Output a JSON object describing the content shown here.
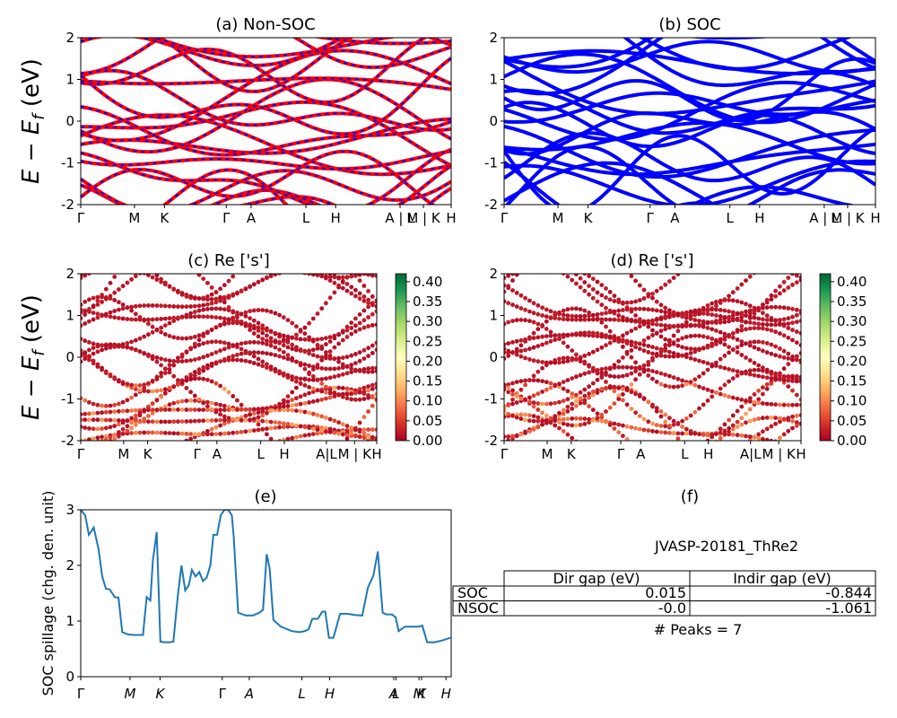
{
  "chart_data": [
    {
      "type": "line",
      "panel": "a",
      "title": "(a) Non-SOC",
      "ylabel": "E − E_f (eV)",
      "ylim": [
        -2,
        2
      ],
      "yticks": [
        -2,
        -1,
        0,
        1,
        2
      ],
      "kpath_labels": [
        "Γ",
        "M",
        "K",
        "Γ",
        "A",
        "L",
        "H",
        "A | L",
        "M | K",
        "H"
      ],
      "series": [
        {
          "name": "",
          "color": "#ff0000",
          "style": "solid"
        },
        {
          "name": "",
          "color": "#0000ff",
          "style": "dashed"
        }
      ]
    },
    {
      "type": "line",
      "panel": "b",
      "title": "(b) SOC",
      "ylim": [
        -2,
        2
      ],
      "yticks": [
        -2,
        -1,
        0,
        1,
        2
      ],
      "kpath_labels": [
        "Γ",
        "M",
        "K",
        "Γ",
        "A",
        "L",
        "H",
        "A | L",
        "M | K",
        "H"
      ],
      "series": [
        {
          "name": "",
          "color": "#0000ff",
          "style": "solid"
        }
      ]
    },
    {
      "type": "scatter",
      "panel": "c",
      "title": "(c)  Re ['s']",
      "ylabel": "E − E_f (eV)",
      "ylim": [
        -2,
        2
      ],
      "yticks": [
        -2,
        -1,
        0,
        1,
        2
      ],
      "kpath_labels": [
        "Γ",
        "M",
        "K",
        "Γ",
        "A",
        "L",
        "H",
        "A|L",
        "M | K",
        "H"
      ],
      "colorbar": {
        "cmap": "RdYlGn",
        "range": [
          0,
          0.42
        ],
        "ticks": [
          "0.00",
          "0.05",
          "0.10",
          "0.15",
          "0.20",
          "0.25",
          "0.30",
          "0.35",
          "0.40"
        ]
      }
    },
    {
      "type": "scatter",
      "panel": "d",
      "title": "(d) Re ['s']",
      "ylim": [
        -2,
        2
      ],
      "yticks": [
        -2,
        -1,
        0,
        1,
        2
      ],
      "kpath_labels": [
        "Γ",
        "M",
        "K",
        "Γ",
        "A",
        "L",
        "H",
        "A|L",
        "M | K",
        "H"
      ],
      "colorbar": {
        "cmap": "RdYlGn",
        "range": [
          0,
          0.42
        ],
        "ticks": [
          "0.00",
          "0.05",
          "0.10",
          "0.15",
          "0.20",
          "0.25",
          "0.30",
          "0.35",
          "0.40"
        ]
      }
    },
    {
      "type": "line",
      "panel": "e",
      "title": "(e)",
      "ylabel": "SOC spillage (chg. den. unit)",
      "ylim": [
        0,
        3
      ],
      "yticks": [
        0,
        1,
        2,
        3
      ],
      "xlim": [
        0,
        1
      ],
      "xticks": [
        {
          "x": 0.0,
          "label": "Γ"
        },
        {
          "x": 0.133,
          "label": "M"
        },
        {
          "x": 0.214,
          "label": "K"
        },
        {
          "x": 0.382,
          "label": "Γ"
        },
        {
          "x": 0.455,
          "label": "A"
        },
        {
          "x": 0.597,
          "label": "L"
        },
        {
          "x": 0.672,
          "label": "H"
        },
        {
          "x": 0.845,
          "label": "A"
        },
        {
          "x": 0.851,
          "label": "L"
        },
        {
          "x": 0.913,
          "label": "M"
        },
        {
          "x": 0.92,
          "label": "K"
        },
        {
          "x": 0.986,
          "label": "H"
        }
      ],
      "series": [
        {
          "name": "",
          "color": "#1f77b4",
          "x": [
            0.0,
            0.012,
            0.022,
            0.035,
            0.048,
            0.058,
            0.068,
            0.078,
            0.092,
            0.102,
            0.112,
            0.128,
            0.143,
            0.153,
            0.162,
            0.168,
            0.178,
            0.188,
            0.195,
            0.205,
            0.215,
            0.225,
            0.24,
            0.25,
            0.262,
            0.272,
            0.282,
            0.292,
            0.3,
            0.31,
            0.32,
            0.33,
            0.34,
            0.35,
            0.358,
            0.368,
            0.378,
            0.388,
            0.398,
            0.408,
            0.413,
            0.425,
            0.445,
            0.465,
            0.482,
            0.492,
            0.502,
            0.51,
            0.52,
            0.54,
            0.57,
            0.59,
            0.605,
            0.615,
            0.625,
            0.64,
            0.652,
            0.66,
            0.67,
            0.682,
            0.7,
            0.72,
            0.74,
            0.76,
            0.775,
            0.79,
            0.802,
            0.815,
            0.825,
            0.84,
            0.85,
            0.858,
            0.875,
            0.895,
            0.912,
            0.922,
            0.935,
            0.955,
            0.975,
            0.998
          ],
          "values": [
            3.0,
            2.9,
            2.55,
            2.68,
            2.3,
            1.8,
            1.58,
            1.57,
            1.43,
            1.42,
            0.8,
            0.76,
            0.75,
            0.75,
            0.75,
            0.75,
            1.43,
            1.37,
            2.1,
            2.6,
            0.63,
            0.62,
            0.62,
            0.63,
            1.45,
            2.0,
            1.55,
            1.65,
            1.92,
            1.8,
            1.88,
            1.72,
            1.78,
            2.0,
            2.55,
            2.55,
            2.9,
            3.0,
            3.0,
            2.9,
            2.5,
            1.15,
            1.1,
            1.1,
            1.15,
            1.2,
            2.2,
            1.95,
            1.02,
            0.9,
            0.82,
            0.8,
            0.82,
            0.85,
            1.04,
            1.04,
            1.17,
            1.17,
            0.7,
            0.7,
            1.13,
            1.13,
            1.11,
            1.1,
            1.6,
            1.82,
            2.25,
            1.15,
            1.12,
            1.12,
            1.07,
            0.82,
            0.9,
            0.9,
            0.9,
            0.92,
            0.62,
            0.62,
            0.65,
            0.7
          ]
        }
      ]
    }
  ],
  "panel_f": {
    "title": "(f)",
    "material_id": "JVASP-20181_ThRe2",
    "table": {
      "col_headers": [
        "Dir gap (eV)",
        "Indir gap (eV)"
      ],
      "rows": [
        {
          "label": "SOC",
          "dir": "0.015",
          "indir": "-0.844"
        },
        {
          "label": "NSOC",
          "dir": "-0.0",
          "indir": "-1.061"
        }
      ]
    },
    "peaks_text": "# Peaks = 7"
  }
}
